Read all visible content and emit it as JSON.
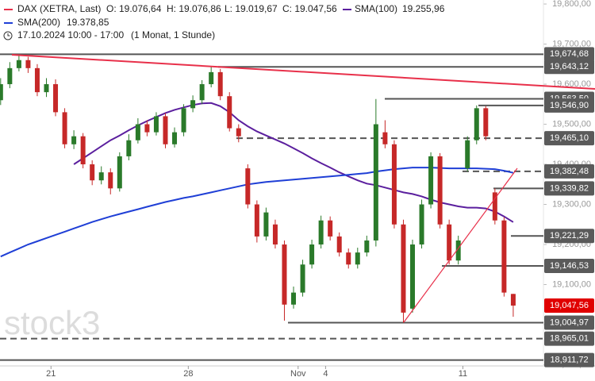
{
  "chart_data": {
    "type": "candlestick",
    "header": {
      "symbol": "DAX (XETRA, Last)",
      "open": "O: 19.076,64",
      "high": "H: 19.076,86",
      "low": "L: 19.019,67",
      "close": "C: 19.047,56",
      "sma100_value": "19.255,96",
      "sma200_value": "19.378,85",
      "period": "17.10.2024 10:00 - 17:00",
      "interval": "(1 Monat, 1 Stunde)"
    },
    "watermark": "stock3",
    "up_color": "#2a7a2a",
    "down_color": "#c62828",
    "open": [
      19560,
      19600,
      19640,
      19660,
      19640,
      19580,
      19600,
      19530,
      19450,
      19470,
      19400,
      19360,
      19380,
      19340,
      19420,
      19460,
      19500,
      19480,
      19520,
      19450,
      19480,
      19540,
      19560,
      19600,
      19630,
      19570,
      19490,
      19390,
      19300,
      19220,
      19250,
      19200,
      19050,
      19080,
      19150,
      19200,
      19260,
      19220,
      19180,
      19150,
      19180,
      19210,
      19480,
      19450,
      19250,
      19040,
      19200,
      19300,
      19420,
      19250,
      19160,
      19390,
      19460,
      19540,
      19330,
      19260,
      19076.64
    ],
    "high": [
      19615,
      19655,
      19675,
      19668,
      19650,
      19615,
      19612,
      19540,
      19485,
      19478,
      19410,
      19395,
      19390,
      19430,
      19475,
      19515,
      19510,
      19530,
      19528,
      19492,
      19550,
      19572,
      19610,
      19643,
      19638,
      19580,
      19500,
      19400,
      19310,
      19292,
      19262,
      19210,
      19095,
      19162,
      19212,
      19272,
      19270,
      19230,
      19190,
      19192,
      19222,
      19563,
      19510,
      19460,
      19262,
      19212,
      19312,
      19430,
      19428,
      19262,
      19222,
      19470,
      19547,
      19545,
      19340,
      19268,
      19076.86
    ],
    "low": [
      19548,
      19590,
      19632,
      19628,
      19570,
      19568,
      19520,
      19440,
      19438,
      19390,
      19348,
      19350,
      19325,
      19332,
      19410,
      19452,
      19470,
      19472,
      19440,
      19442,
      19470,
      19530,
      19550,
      19592,
      19560,
      19482,
      19455,
      19290,
      19205,
      19210,
      19190,
      19010,
      19040,
      19070,
      19140,
      19190,
      19210,
      19170,
      19140,
      19140,
      19170,
      19195,
      19440,
      19240,
      19005,
      19030,
      19190,
      19290,
      19240,
      19150,
      19150,
      19382,
      19450,
      19460,
      19250,
      19070,
      19019.67
    ],
    "close": [
      19600,
      19640,
      19660,
      19640,
      19580,
      19600,
      19530,
      19450,
      19470,
      19400,
      19360,
      19380,
      19340,
      19420,
      19460,
      19500,
      19480,
      19520,
      19450,
      19480,
      19540,
      19560,
      19600,
      19630,
      19570,
      19490,
      19470,
      19300,
      19220,
      19280,
      19200,
      19050,
      19080,
      19150,
      19200,
      19260,
      19220,
      19180,
      19150,
      19180,
      19210,
      19500,
      19450,
      19250,
      19030,
      19200,
      19300,
      19420,
      19250,
      19160,
      19210,
      19460,
      19540,
      19470,
      19260,
      19080,
      19047.56
    ],
    "series": [
      {
        "name": "SMA(100)",
        "color": "#5b1f9e",
        "values": [
          null,
          null,
          null,
          null,
          null,
          null,
          null,
          null,
          19400,
          19415,
          19430,
          19445,
          19460,
          19472,
          19485,
          19497,
          19508,
          19518,
          19528,
          19536,
          19542,
          19548,
          19552,
          19553,
          19545,
          19530,
          19510,
          19495,
          19482,
          19472,
          19462,
          19452,
          19440,
          19428,
          19415,
          19403,
          19392,
          19380,
          19370,
          19360,
          19352,
          19348,
          19342,
          19336,
          19330,
          19326,
          19320,
          19312,
          19305,
          19300,
          19295,
          19292,
          19292,
          19290,
          19282,
          19270,
          19255.96
        ]
      },
      {
        "name": "SMA(200)",
        "color": "#1f3fd6",
        "values": [
          19170,
          19180,
          19190,
          19200,
          19208,
          19216,
          19224,
          19232,
          19240,
          19248,
          19256,
          19263,
          19270,
          19276,
          19282,
          19288,
          19294,
          19300,
          19306,
          19311,
          19316,
          19320,
          19325,
          19330,
          19335,
          19340,
          19345,
          19350,
          19353,
          19356,
          19358,
          19360,
          19362,
          19364,
          19366,
          19368,
          19370,
          19372,
          19374,
          19376,
          19378,
          19382,
          19385,
          19388,
          19390,
          19392,
          19392,
          19392,
          19391,
          19390,
          19390,
          19390,
          19390,
          19389,
          19388,
          19384,
          19378.85
        ]
      }
    ],
    "levels": [
      {
        "value": 19674.68,
        "label": "19,674,68",
        "style": "solid"
      },
      {
        "value": 19643.12,
        "label": "19,643,12",
        "style": "solid"
      },
      {
        "value": 19563.5,
        "label": "19,563,50",
        "style": "solid"
      },
      {
        "value": 19546.9,
        "label": "19,546,90",
        "style": "solid"
      },
      {
        "value": 19465.1,
        "label": "19,465,10",
        "style": "dashed"
      },
      {
        "value": 19382.48,
        "label": "19,382,48",
        "style": "dashed"
      },
      {
        "value": 19339.82,
        "label": "19,339,82",
        "style": "solid"
      },
      {
        "value": 19221.29,
        "label": "19,221,29",
        "style": "solid"
      },
      {
        "value": 19146.53,
        "label": "19,146,53",
        "style": "solid"
      },
      {
        "value": 19004.97,
        "label": "19,004,97",
        "style": "solid"
      },
      {
        "value": 18965.01,
        "label": "18,965,01",
        "style": "dashed"
      },
      {
        "value": 18911.72,
        "label": "18,911,72",
        "style": "solid"
      }
    ],
    "price_label": {
      "value": 19047.56,
      "label": "19,047,56",
      "color": "#e00000"
    },
    "ylim": [
      18899,
      19810
    ],
    "yticks": [
      {
        "value": 18900,
        "label": "18,900,00"
      },
      {
        "value": 19000,
        "label": "19,000,00"
      },
      {
        "value": 19100,
        "label": "19,100,00"
      },
      {
        "value": 19200,
        "label": "19,200,00"
      },
      {
        "value": 19300,
        "label": "19,300,00"
      },
      {
        "value": 19400,
        "label": "19,400,00"
      },
      {
        "value": 19500,
        "label": "19,500,00"
      },
      {
        "value": 19600,
        "label": "19,600,00"
      },
      {
        "value": 19700,
        "label": "19,700,00"
      },
      {
        "value": 19800,
        "label": "19,800,00"
      }
    ],
    "xlim": [
      -0.07,
      59.3
    ],
    "xticks": [
      {
        "value": 5.5,
        "label": "21"
      },
      {
        "value": 20.5,
        "label": "28"
      },
      {
        "value": 32.5,
        "label": "Nov"
      },
      {
        "value": 35.5,
        "label": "4"
      },
      {
        "value": 50.5,
        "label": "11"
      }
    ],
    "grid": false
  }
}
